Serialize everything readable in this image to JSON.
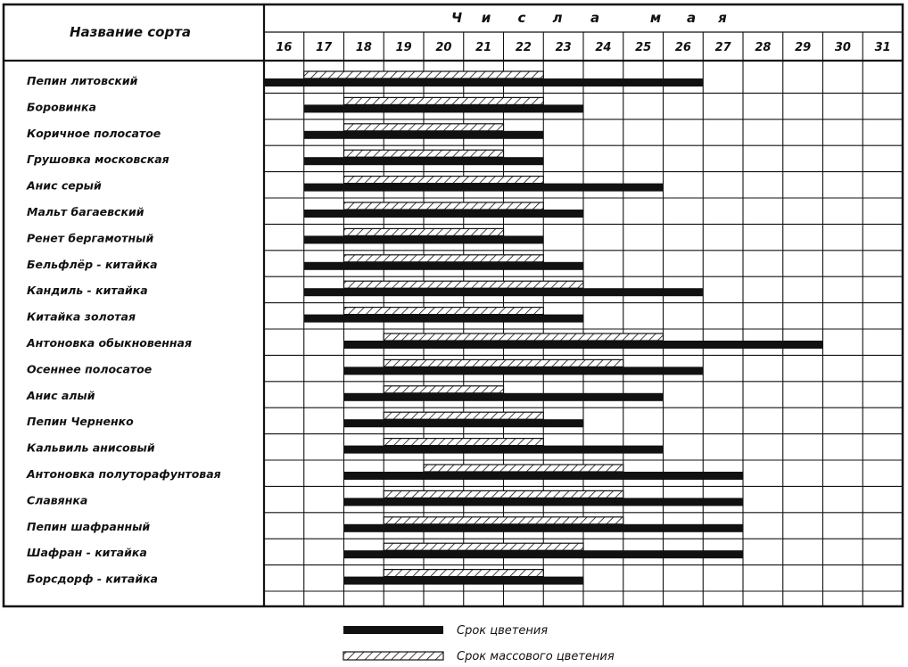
{
  "chart_data": {
    "type": "gantt",
    "header": {
      "variety_column": "Название сорта",
      "days_title_letters": [
        "Ч",
        "и",
        "с",
        "л",
        "а",
        "м",
        "а",
        "я"
      ]
    },
    "x_ticks": [
      "16",
      "17",
      "18",
      "19",
      "20",
      "21",
      "22",
      "23",
      "24",
      "25",
      "26",
      "27",
      "28",
      "29",
      "30",
      "31"
    ],
    "series": [
      {
        "name": "Срок цветения",
        "style": "solid",
        "color": "#111111"
      },
      {
        "name": "Срок массового цветения",
        "style": "hatched",
        "color": "#111111"
      }
    ],
    "rows": [
      {
        "variety": "Пепин литовский",
        "bloom": [
          16,
          27
        ],
        "mass": [
          17,
          23
        ]
      },
      {
        "variety": "Боровинка",
        "bloom": [
          17,
          24
        ],
        "mass": [
          18,
          23
        ]
      },
      {
        "variety": "Коричное полосатое",
        "bloom": [
          17,
          23
        ],
        "mass": [
          18,
          22
        ]
      },
      {
        "variety": "Грушовка московская",
        "bloom": [
          17,
          23
        ],
        "mass": [
          18,
          22
        ]
      },
      {
        "variety": "Анис серый",
        "bloom": [
          17,
          26
        ],
        "mass": [
          18,
          23
        ]
      },
      {
        "variety": "Мальт багаевский",
        "bloom": [
          17,
          24
        ],
        "mass": [
          18,
          23
        ]
      },
      {
        "variety": "Ренет бергамотный",
        "bloom": [
          17,
          23
        ],
        "mass": [
          18,
          22
        ]
      },
      {
        "variety": "Бельфлёр - китайка",
        "bloom": [
          17,
          24
        ],
        "mass": [
          18,
          23
        ]
      },
      {
        "variety": "Кандиль - китайка",
        "bloom": [
          17,
          27
        ],
        "mass": [
          18,
          24
        ]
      },
      {
        "variety": "Китайка золотая",
        "bloom": [
          17,
          24
        ],
        "mass": [
          18,
          23
        ]
      },
      {
        "variety": "Антоновка обыкновенная",
        "bloom": [
          18,
          30
        ],
        "mass": [
          19,
          26
        ]
      },
      {
        "variety": "Осеннее полосатое",
        "bloom": [
          18,
          27
        ],
        "mass": [
          19,
          25
        ]
      },
      {
        "variety": "Анис алый",
        "bloom": [
          18,
          26
        ],
        "mass": [
          19,
          22
        ]
      },
      {
        "variety": "Пепин Черненко",
        "bloom": [
          18,
          24
        ],
        "mass": [
          19,
          23
        ]
      },
      {
        "variety": "Кальвиль анисовый",
        "bloom": [
          18,
          26
        ],
        "mass": [
          19,
          23
        ]
      },
      {
        "variety": "Антоновка полуторафунтовая",
        "bloom": [
          18,
          28
        ],
        "mass": [
          20,
          25
        ]
      },
      {
        "variety": "Славянка",
        "bloom": [
          18,
          28
        ],
        "mass": [
          19,
          25
        ]
      },
      {
        "variety": "Пепин шафранный",
        "bloom": [
          18,
          28
        ],
        "mass": [
          19,
          25
        ]
      },
      {
        "variety": "Шафран - китайка",
        "bloom": [
          18,
          28
        ],
        "mass": [
          19,
          24
        ]
      },
      {
        "variety": "Борсдорф - китайка",
        "bloom": [
          18,
          24
        ],
        "mass": [
          19,
          23
        ]
      }
    ]
  }
}
